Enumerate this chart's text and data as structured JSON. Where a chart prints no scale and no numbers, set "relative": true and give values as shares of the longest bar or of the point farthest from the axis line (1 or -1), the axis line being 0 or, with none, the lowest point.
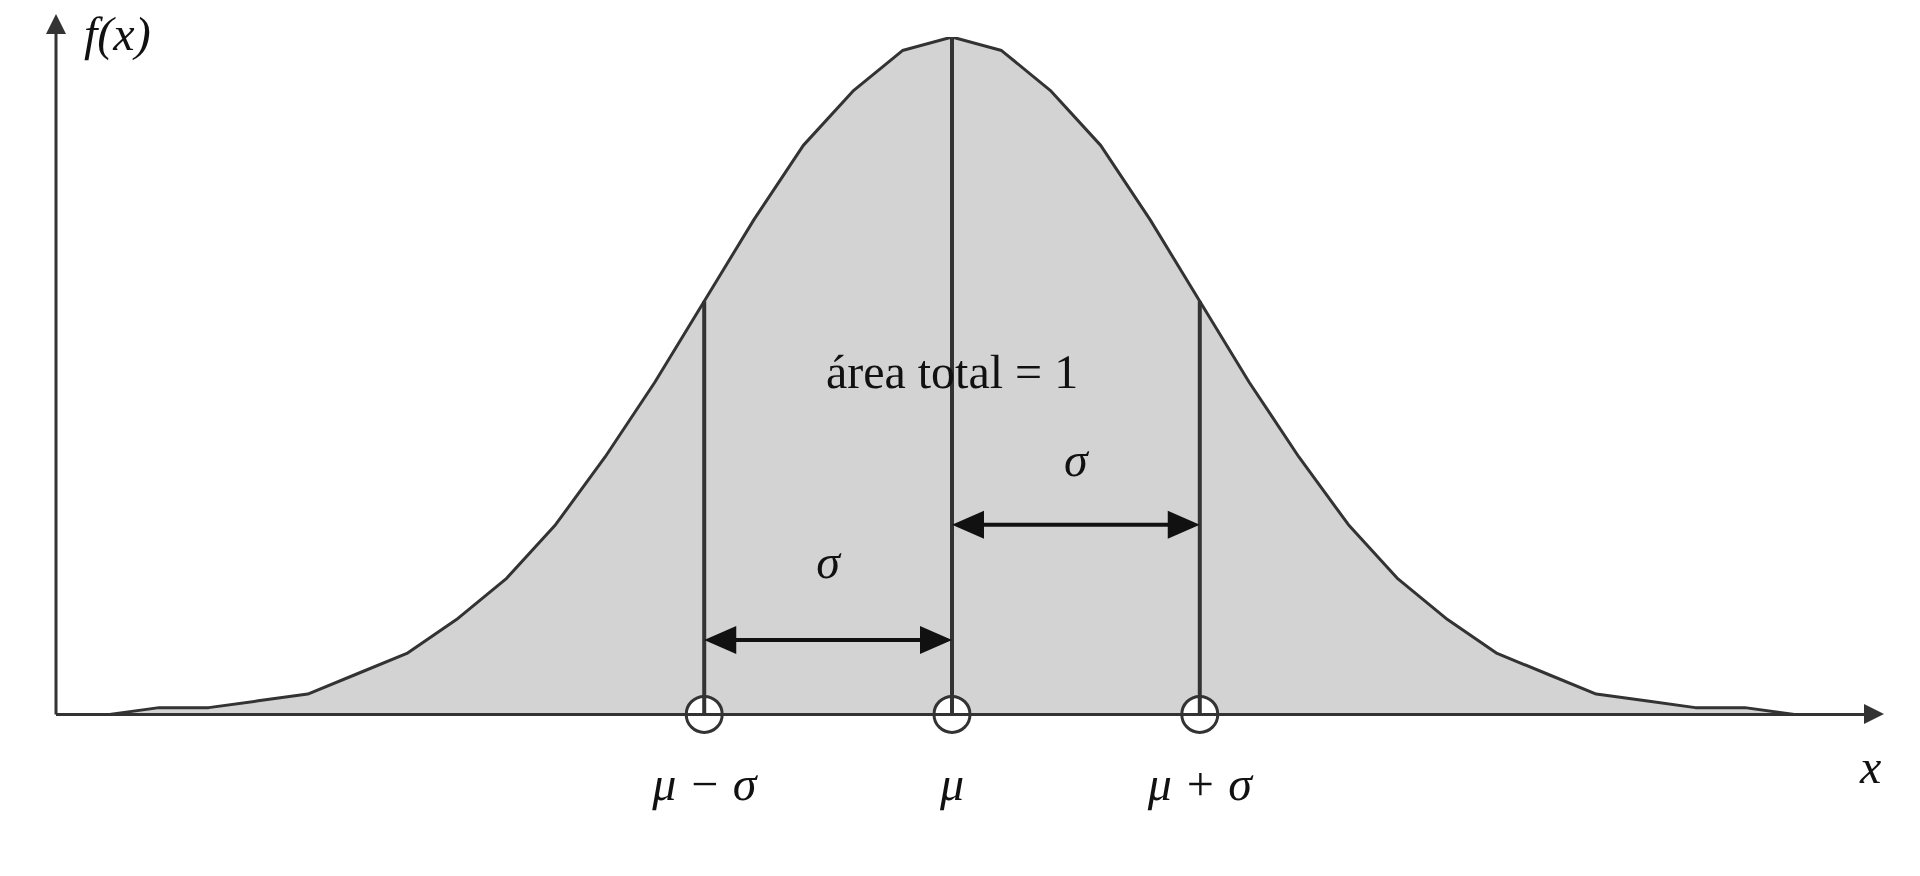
{
  "chart_data": {
    "type": "area",
    "relative": true,
    "xlabel": "x",
    "ylabel": "f(x)",
    "categories": [
      null,
      null,
      null,
      null,
      null,
      null,
      null,
      null,
      null,
      null,
      null,
      null,
      null,
      "μ − σ",
      null,
      null,
      null,
      null,
      "μ",
      null,
      null,
      null,
      null,
      "μ + σ",
      null,
      null,
      null,
      null,
      null,
      null,
      null,
      null,
      null,
      null,
      null,
      null,
      null
    ],
    "series": [
      {
        "color": "#d3d3d3",
        "values": [
          0,
          0,
          0.01,
          0.01,
          0.02,
          0.03,
          0.06,
          0.09,
          0.14,
          0.2,
          0.28,
          0.38,
          0.49,
          0.61,
          0.73,
          0.84,
          0.92,
          0.98,
          1,
          0.98,
          0.92,
          0.84,
          0.73,
          0.61,
          0.49,
          0.38,
          0.28,
          0.2,
          0.14,
          0.09,
          0.06,
          0.03,
          0.02,
          0.01,
          0.01,
          0,
          0
        ]
      },
      {
        "type": "scatter",
        "x": [
          "μ − σ",
          "μ",
          "μ + σ"
        ],
        "values": [
          0,
          0,
          0
        ],
        "color": "#ffffff"
      }
    ],
    "ref_lines": [
      {
        "axis": "x",
        "value": "μ − σ",
        "color": "#333333"
      },
      {
        "axis": "x",
        "value": "μ",
        "color": "#333333"
      },
      {
        "axis": "x",
        "value": "μ + σ",
        "color": "#333333"
      }
    ],
    "annotations": [
      "área total = 1",
      "σ",
      "σ"
    ],
    "grid": false,
    "legend": false
  }
}
